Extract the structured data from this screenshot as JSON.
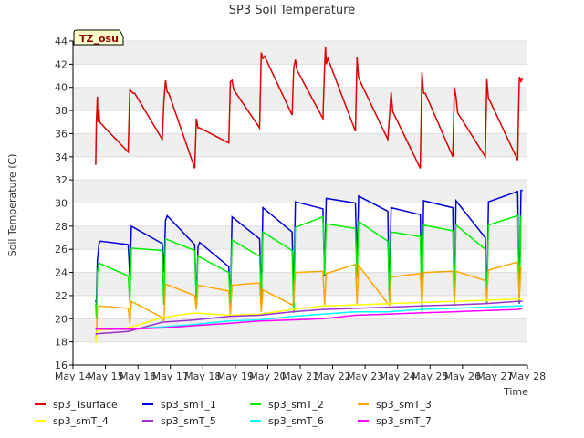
{
  "chart_data": {
    "type": "line",
    "title": "SP3 Soil Temperature",
    "xlabel": "Time",
    "ylabel": "Soil Temperature (C)",
    "badge": "TZ_osu",
    "ylim": [
      16,
      44
    ],
    "yticks": [
      16,
      18,
      20,
      22,
      24,
      26,
      28,
      30,
      32,
      34,
      36,
      38,
      40,
      42,
      44
    ],
    "xlim": [
      14,
      28
    ],
    "xticks": [
      {
        "v": 14,
        "label": "May 14"
      },
      {
        "v": 15,
        "label": "May 15"
      },
      {
        "v": 16,
        "label": "May 16"
      },
      {
        "v": 17,
        "label": "May 17"
      },
      {
        "v": 18,
        "label": "May 18"
      },
      {
        "v": 19,
        "label": "May 19"
      },
      {
        "v": 20,
        "label": "May 20"
      },
      {
        "v": 21,
        "label": "May 21"
      },
      {
        "v": 22,
        "label": "May 22"
      },
      {
        "v": 23,
        "label": "May 23"
      },
      {
        "v": 24,
        "label": "May 24"
      },
      {
        "v": 25,
        "label": "May 25"
      },
      {
        "v": 26,
        "label": "May 26"
      },
      {
        "v": 27,
        "label": "May 27"
      },
      {
        "v": 28,
        "label": "May 28"
      }
    ],
    "grid": true,
    "legend_position": "bottom",
    "series": [
      {
        "name": "sp3_Tsurface",
        "color": "#dd0000",
        "x": [
          14.7,
          14.72,
          14.75,
          14.77,
          14.8,
          14.82,
          14.85,
          15.7,
          15.75,
          15.85,
          15.9,
          16.75,
          16.8,
          16.85,
          16.9,
          16.95,
          17.75,
          17.8,
          17.85,
          17.9,
          18.8,
          18.85,
          18.9,
          18.95,
          19.75,
          19.8,
          19.85,
          19.9,
          20.75,
          20.8,
          20.85,
          20.9,
          21.7,
          21.75,
          21.78,
          21.8,
          21.85,
          22.7,
          22.75,
          22.8,
          22.85,
          23.7,
          23.75,
          23.8,
          23.85,
          24.7,
          24.75,
          24.8,
          24.85,
          25.7,
          25.75,
          25.8,
          25.85,
          26.7,
          26.75,
          26.8,
          26.85,
          27.7,
          27.72,
          27.75,
          27.8,
          27.85
        ],
        "y": [
          33.3,
          37,
          39.2,
          37,
          38,
          37,
          36.9,
          34.4,
          39.8,
          39.5,
          39.5,
          35.5,
          38.8,
          40.6,
          39.6,
          39.5,
          33,
          37.3,
          36.5,
          36.5,
          35.2,
          40.5,
          40.6,
          39.8,
          36.5,
          43,
          42.5,
          42.7,
          37.6,
          41.7,
          42.4,
          41.5,
          37.3,
          41.8,
          43.5,
          42,
          42.5,
          36.2,
          42.6,
          40.8,
          40.5,
          35.5,
          37.5,
          39.6,
          37.9,
          33,
          41.3,
          39.5,
          39.5,
          34,
          40,
          39.2,
          37.8,
          34,
          40.7,
          39,
          38.8,
          33.7,
          37,
          40.9,
          40.5,
          40.8
        ]
      },
      {
        "name": "sp3_smT_1",
        "color": "#0000dd",
        "x": [
          14.7,
          14.72,
          14.75,
          14.8,
          14.85,
          15.7,
          15.75,
          15.8,
          16.75,
          16.8,
          16.85,
          16.9,
          17.75,
          17.8,
          17.85,
          17.9,
          18.8,
          18.85,
          18.9,
          19.75,
          19.8,
          19.85,
          20.75,
          20.8,
          20.85,
          21.7,
          21.75,
          21.8,
          22.7,
          22.75,
          22.8,
          23.7,
          23.75,
          23.8,
          24.7,
          24.75,
          24.8,
          25.7,
          25.75,
          25.8,
          26.7,
          26.75,
          26.8,
          27.7,
          27.75,
          27.8,
          27.85
        ],
        "y": [
          21.6,
          21.3,
          25,
          26.5,
          26.7,
          26.4,
          23.7,
          28,
          26.5,
          24,
          28.5,
          28.9,
          26.4,
          21.5,
          26.2,
          26.6,
          24.5,
          21.4,
          28.8,
          26.9,
          21.6,
          29.6,
          27.5,
          21.8,
          30.1,
          29.5,
          23.7,
          30.4,
          30,
          24.5,
          30.6,
          29.3,
          21.5,
          29.6,
          29,
          20.7,
          30.2,
          29.6,
          21.2,
          30.2,
          27,
          21.3,
          30.1,
          31,
          21.3,
          31.1,
          31.1
        ]
      },
      {
        "name": "sp3_smT_2",
        "color": "#00ee00",
        "x": [
          14.7,
          14.72,
          14.75,
          14.8,
          15.7,
          15.75,
          15.8,
          16.75,
          16.8,
          16.85,
          17.75,
          17.8,
          17.85,
          18.8,
          18.85,
          18.9,
          19.75,
          19.8,
          19.85,
          20.75,
          20.8,
          20.85,
          21.7,
          21.75,
          21.8,
          22.7,
          22.75,
          22.8,
          23.7,
          23.75,
          23.8,
          24.7,
          24.75,
          24.8,
          25.7,
          25.75,
          25.8,
          26.7,
          26.75,
          26.8,
          27.7,
          27.75,
          27.8
        ],
        "y": [
          21.3,
          20,
          24,
          24.8,
          23.7,
          21.4,
          26.1,
          25.9,
          21.2,
          26.9,
          25.9,
          21.4,
          25.4,
          24,
          21.5,
          26.8,
          25.4,
          21.7,
          27.5,
          25.9,
          20.5,
          27.9,
          28.8,
          23.8,
          28.2,
          27.8,
          23.5,
          28.4,
          26.7,
          21.5,
          27.5,
          27.1,
          20.5,
          28.1,
          27.6,
          21.2,
          28.1,
          26,
          21.4,
          28.1,
          28.9,
          21.4,
          28.9
        ]
      },
      {
        "name": "sp3_smT_3",
        "color": "#ffa500",
        "x": [
          14.7,
          14.72,
          14.75,
          14.8,
          15.7,
          15.75,
          15.8,
          16.75,
          16.8,
          16.85,
          17.75,
          17.8,
          17.85,
          18.8,
          18.85,
          18.9,
          19.75,
          19.8,
          19.85,
          20.75,
          20.8,
          20.85,
          21.7,
          21.75,
          21.8,
          22.7,
          22.75,
          22.8,
          23.7,
          23.75,
          23.8,
          24.7,
          24.75,
          24.8,
          25.7,
          25.75,
          25.8,
          26.7,
          26.75,
          26.8,
          27.7,
          27.75,
          27.8
        ],
        "y": [
          18.5,
          18.3,
          20.8,
          21.1,
          20.9,
          19.6,
          21.5,
          20.1,
          19.8,
          23,
          22,
          20.8,
          22.9,
          22.4,
          20.3,
          22.9,
          23.1,
          20.6,
          22.5,
          21.2,
          21.5,
          24,
          24.1,
          21.2,
          23.9,
          24.7,
          21.3,
          24.6,
          21.3,
          21.2,
          23.6,
          23.9,
          21.2,
          24,
          24.1,
          21.3,
          24.1,
          23.3,
          21.5,
          24.2,
          24.9,
          21.7,
          24.5
        ]
      },
      {
        "name": "sp3_smT_4",
        "color": "#ffff00",
        "x": [
          14.7,
          14.72,
          14.75,
          15.7,
          16.75,
          17.75,
          18.8,
          19.75,
          20.75,
          21.7,
          22.7,
          23.7,
          24.7,
          25.7,
          26.7,
          27.7,
          27.85
        ],
        "y": [
          17.9,
          18.5,
          19,
          19.2,
          20.1,
          20.5,
          20.3,
          20.4,
          20.8,
          21.1,
          21.2,
          21.3,
          21.4,
          21.5,
          21.6,
          21.7,
          21.7
        ]
      },
      {
        "name": "sp3_smT_5",
        "color": "#9932cc",
        "x": [
          14.7,
          14.72,
          14.75,
          15.7,
          16.75,
          17.75,
          18.8,
          19.75,
          20.75,
          21.7,
          22.7,
          23.7,
          24.7,
          25.7,
          26.7,
          27.7,
          27.85
        ],
        "y": [
          18.6,
          18.7,
          18.7,
          18.9,
          19.7,
          19.9,
          20.2,
          20.3,
          20.6,
          20.8,
          20.9,
          21,
          21.1,
          21.2,
          21.3,
          21.5,
          21.5
        ]
      },
      {
        "name": "sp3_smT_6",
        "color": "#00ffff",
        "x": [
          14.7,
          14.72,
          14.75,
          15.7,
          16.75,
          17.75,
          18.8,
          19.75,
          20.75,
          21.7,
          22.7,
          23.7,
          24.7,
          25.7,
          26.7,
          27.7,
          27.85
        ],
        "y": [
          19,
          19.1,
          19.1,
          19.1,
          19.3,
          19.5,
          19.8,
          19.9,
          20.2,
          20.4,
          20.6,
          20.6,
          20.8,
          20.9,
          21,
          21.1,
          21.1
        ]
      },
      {
        "name": "sp3_smT_7",
        "color": "#ff00ff",
        "x": [
          14.7,
          14.72,
          14.75,
          15.7,
          16.75,
          17.75,
          18.8,
          19.75,
          20.75,
          21.7,
          22.7,
          23.7,
          24.7,
          25.7,
          26.7,
          27.7,
          27.85
        ],
        "y": [
          19.2,
          19.1,
          19.1,
          19.1,
          19.2,
          19.4,
          19.6,
          19.8,
          19.9,
          20,
          20.3,
          20.4,
          20.5,
          20.6,
          20.7,
          20.8,
          20.9
        ]
      }
    ]
  }
}
